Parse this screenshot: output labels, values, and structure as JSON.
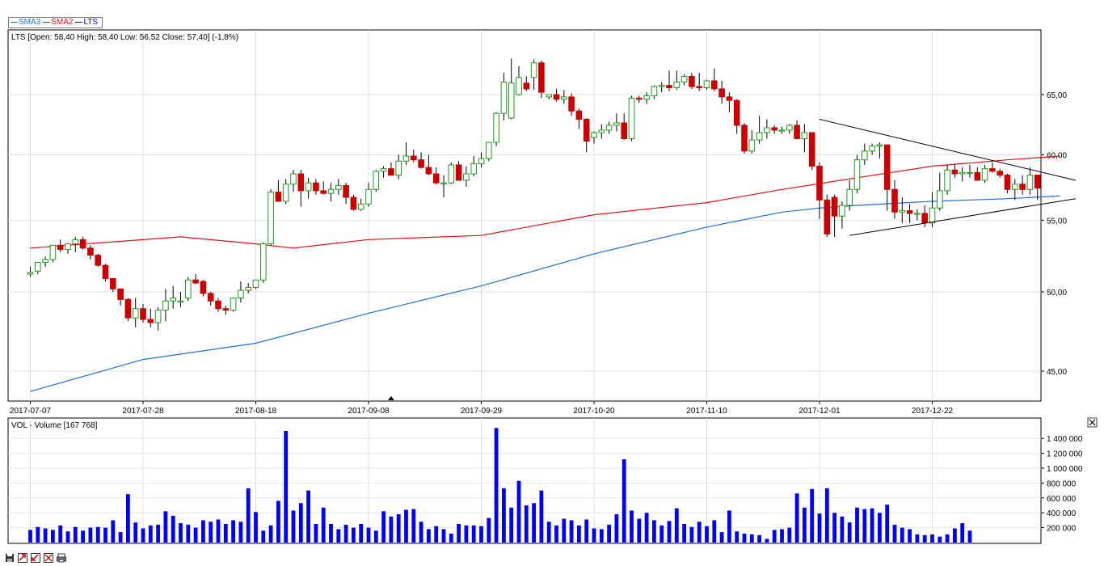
{
  "legend": {
    "items": [
      {
        "label": "SMA3",
        "color": "#1f6fd6"
      },
      {
        "label": "SMA2",
        "color": "#e01010"
      },
      {
        "label": "LTS",
        "color": "#0000ff"
      }
    ]
  },
  "price_panel": {
    "header": "LTS [Open: 58,40  High: 58,40  Low: 56,52  Close: 57,40] (-1,8%)"
  },
  "volume_panel": {
    "header": "VOL - Volume [167 768]",
    "close_icon": "close-icon"
  },
  "toolbar": {
    "icons": [
      "save-icon",
      "zoom-in-icon",
      "zoom-out-icon",
      "fit-icon",
      "print-icon"
    ]
  },
  "colors": {
    "up_candle": "#1a9e1a",
    "down_candle": "#cc0000",
    "sma3": "#1f6fd6",
    "sma2": "#e01010",
    "volume": "#0000ff",
    "trendline": "#000000"
  },
  "chart_data": [
    {
      "type": "candlestick",
      "title": "LTS [Open: 58,40  High: 58,40  Low: 56,52  Close: 57,40] (-1,8%)",
      "x_tick_labels": [
        "2017-07-07",
        "2017-07-28",
        "2017-08-18",
        "2017-09-08",
        "2017-09-29",
        "2017-10-20",
        "2017-11-10",
        "2017-12-01",
        "2017-12-22"
      ],
      "y_tick_labels": [
        "45,00",
        "50,00",
        "55,00",
        "60,00",
        "65,00"
      ],
      "ylim": [
        43.5,
        69.5
      ],
      "y_scale": "log",
      "grid": true,
      "candles": {
        "open": [
          51.2,
          51.4,
          52.0,
          52.2,
          53.2,
          52.9,
          53.3,
          53.6,
          53.0,
          52.5,
          51.8,
          50.9,
          50.2,
          49.5,
          48.3,
          48.9,
          48.2,
          48.0,
          48.8,
          49.4,
          49.4,
          49.6,
          50.8,
          50.7,
          49.9,
          49.4,
          48.9,
          48.8,
          49.6,
          50.1,
          50.3,
          50.8,
          53.3,
          57.1,
          56.4,
          57.7,
          58.5,
          57.2,
          57.8,
          57.2,
          57.0,
          57.3,
          57.6,
          56.7,
          55.8,
          56.2,
          57.3,
          58.7,
          58.9,
          58.4,
          59.5,
          59.9,
          59.6,
          59.0,
          58.5,
          57.8,
          57.8,
          59.2,
          58.0,
          58.5,
          59.3,
          59.7,
          61.0,
          63.4,
          63.0,
          65.0,
          66.0,
          66.5,
          67.8,
          64.8,
          65.0,
          64.6,
          64.8,
          63.6,
          62.9,
          61.4,
          61.8,
          62.0,
          62.4,
          62.6,
          61.3,
          64.7,
          64.6,
          64.9,
          65.7,
          65.8,
          65.6,
          66.1,
          66.6,
          65.7,
          65.6,
          66.2,
          65.5,
          64.8,
          64.5,
          62.4,
          60.3,
          61.2,
          61.8,
          62.2,
          62.0,
          62.0,
          62.4,
          61.3,
          61.8,
          59.1,
          56.5,
          56.7,
          55.3,
          56.1,
          57.3,
          59.6,
          60.3,
          60.7,
          60.8,
          57.3,
          55.6,
          55.7,
          55.5,
          55.5,
          54.8,
          55.9,
          57.2,
          58.8,
          58.5,
          58.6,
          58.6,
          58.0,
          58.9,
          58.7,
          58.4,
          57.3,
          57.7,
          57.3,
          58.4
        ],
        "high": [
          51.7,
          52.0,
          52.4,
          53.2,
          53.6,
          53.3,
          53.8,
          53.8,
          53.2,
          52.6,
          51.9,
          50.9,
          50.2,
          49.6,
          49.6,
          49.2,
          48.9,
          49.0,
          50.2,
          50.4,
          50.0,
          51.0,
          51.2,
          50.8,
          50.0,
          49.6,
          49.1,
          49.5,
          50.7,
          50.6,
          50.5,
          53.4,
          57.3,
          58.0,
          58.1,
          58.8,
          58.8,
          58.2,
          58.1,
          57.9,
          57.8,
          58.1,
          57.8,
          56.9,
          56.6,
          57.8,
          58.8,
          59.1,
          59.4,
          60.0,
          61.0,
          60.4,
          60.2,
          60.0,
          59.0,
          58.4,
          59.4,
          59.5,
          59.1,
          59.9,
          60.2,
          60.7,
          63.5,
          66.9,
          68.2,
          67.5,
          66.6,
          68.1,
          68.0,
          65.0,
          65.5,
          65.4,
          65.1,
          63.8,
          63.0,
          61.9,
          62.5,
          62.7,
          63.4,
          63.4,
          64.9,
          64.9,
          65.2,
          65.8,
          66.1,
          67.1,
          67.1,
          66.8,
          66.9,
          66.9,
          66.3,
          67.3,
          66.2,
          65.2,
          64.6,
          62.6,
          62.0,
          63.2,
          62.9,
          62.4,
          62.3,
          62.5,
          62.8,
          62.5,
          61.8,
          59.4,
          56.9,
          56.9,
          56.4,
          58.0,
          60.0,
          60.9,
          60.9,
          61.0,
          60.8,
          58.0,
          56.7,
          56.2,
          55.8,
          56.1,
          57.1,
          58.6,
          59.2,
          59.3,
          59.0,
          59.2,
          59.0,
          59.2,
          59.4,
          58.9,
          58.5,
          58.1,
          58.4,
          59.0,
          58.4
        ],
        "low": [
          51.0,
          51.2,
          51.7,
          52.0,
          52.7,
          52.6,
          52.7,
          52.9,
          52.2,
          51.7,
          50.7,
          50.0,
          49.1,
          48.1,
          47.7,
          48.0,
          47.7,
          47.5,
          48.1,
          48.9,
          49.0,
          49.4,
          50.5,
          49.7,
          49.1,
          48.7,
          48.5,
          48.7,
          49.3,
          49.9,
          50.2,
          50.6,
          53.2,
          56.5,
          56.2,
          57.1,
          56.0,
          56.6,
          56.9,
          56.9,
          56.4,
          56.9,
          56.2,
          55.7,
          55.7,
          56.0,
          57.1,
          58.2,
          58.4,
          58.1,
          59.2,
          59.4,
          58.9,
          58.4,
          57.7,
          56.7,
          57.7,
          58.1,
          57.5,
          58.3,
          59.0,
          59.5,
          60.7,
          62.8,
          62.9,
          64.9,
          65.3,
          65.4,
          64.7,
          64.6,
          64.4,
          64.2,
          63.2,
          62.1,
          60.2,
          60.9,
          61.3,
          61.7,
          61.9,
          61.2,
          61.1,
          64.3,
          64.2,
          64.6,
          65.2,
          65.3,
          65.4,
          65.8,
          65.5,
          65.3,
          65.4,
          65.3,
          64.2,
          63.5,
          61.7,
          60.1,
          60.1,
          60.9,
          61.3,
          61.7,
          61.7,
          61.7,
          61.7,
          60.2,
          58.8,
          55.1,
          53.8,
          53.8,
          54.4,
          55.7,
          57.0,
          59.2,
          60.0,
          59.7,
          55.7,
          55.1,
          54.8,
          54.8,
          55.0,
          54.5,
          54.5,
          55.7,
          56.9,
          58.2,
          57.9,
          58.2,
          58.1,
          57.8,
          58.6,
          58.2,
          57.0,
          56.5,
          56.9,
          56.9,
          56.5
        ],
        "close": [
          51.3,
          52.0,
          52.2,
          53.2,
          52.9,
          53.3,
          53.6,
          53.0,
          52.5,
          51.8,
          50.9,
          50.2,
          49.5,
          48.3,
          48.9,
          48.2,
          48.0,
          48.8,
          49.4,
          49.6,
          49.4,
          50.8,
          50.6,
          49.9,
          49.4,
          48.9,
          48.8,
          49.6,
          50.1,
          50.3,
          50.8,
          53.3,
          57.1,
          56.4,
          57.7,
          58.5,
          57.2,
          57.8,
          57.2,
          57.0,
          57.3,
          57.6,
          56.7,
          55.8,
          56.2,
          57.3,
          58.7,
          58.9,
          58.4,
          59.5,
          59.9,
          59.6,
          59.0,
          58.5,
          57.8,
          57.8,
          59.2,
          58.0,
          58.5,
          59.3,
          59.7,
          61.0,
          63.4,
          66.1,
          66.0,
          66.5,
          65.5,
          67.8,
          65.2,
          65.0,
          64.6,
          64.8,
          63.6,
          62.9,
          61.1,
          61.8,
          62.0,
          62.4,
          62.6,
          61.3,
          64.7,
          64.6,
          64.9,
          65.7,
          65.8,
          65.6,
          66.1,
          66.6,
          65.7,
          65.6,
          66.2,
          65.5,
          64.8,
          64.5,
          62.4,
          60.3,
          61.2,
          61.8,
          62.2,
          62.0,
          62.0,
          62.4,
          61.3,
          61.8,
          59.1,
          56.5,
          54.0,
          55.3,
          56.1,
          57.3,
          59.6,
          60.3,
          60.7,
          60.8,
          57.3,
          55.6,
          55.7,
          55.5,
          55.5,
          54.8,
          55.9,
          57.2,
          58.8,
          58.5,
          58.6,
          58.6,
          58.0,
          58.9,
          58.7,
          58.4,
          57.3,
          57.7,
          57.3,
          58.4,
          57.4
        ]
      },
      "series": [
        {
          "name": "SMA2",
          "x_index": [
            0,
            20,
            30,
            35,
            45,
            60,
            75,
            90,
            100,
            110,
            120,
            130,
            137
          ],
          "values": [
            53.0,
            53.8,
            53.3,
            53.0,
            53.6,
            53.9,
            55.4,
            56.3,
            57.3,
            58.2,
            59.1,
            59.6,
            59.9
          ]
        },
        {
          "name": "SMA3",
          "x_index": [
            0,
            15,
            30,
            45,
            60,
            75,
            90,
            100,
            105,
            110,
            120,
            130,
            137
          ],
          "values": [
            43.8,
            45.7,
            46.7,
            48.6,
            50.4,
            52.6,
            54.5,
            55.6,
            55.9,
            56.1,
            56.4,
            56.6,
            56.8
          ]
        }
      ],
      "trendlines": [
        {
          "from": {
            "x_index": 105,
            "y": 62.9
          },
          "to": {
            "x_index": 138,
            "y": 58.0
          }
        },
        {
          "from": {
            "x_index": 109,
            "y": 53.9
          },
          "to": {
            "x_index": 138,
            "y": 56.6
          }
        }
      ]
    },
    {
      "type": "bar",
      "title": "VOL - Volume [167 768]",
      "y_tick_labels": [
        "200 000",
        "400 000",
        "600 000",
        "800 000",
        "1 000 000",
        "1 200 000",
        "1 400 000"
      ],
      "ylim": [
        0,
        1650000
      ],
      "values": [
        170000,
        210000,
        190000,
        170000,
        230000,
        150000,
        210000,
        160000,
        200000,
        210000,
        200000,
        300000,
        140000,
        650000,
        270000,
        190000,
        230000,
        240000,
        420000,
        360000,
        260000,
        240000,
        200000,
        300000,
        280000,
        310000,
        250000,
        300000,
        280000,
        730000,
        410000,
        160000,
        230000,
        560000,
        1500000,
        430000,
        530000,
        700000,
        250000,
        470000,
        250000,
        180000,
        240000,
        200000,
        250000,
        200000,
        160000,
        420000,
        350000,
        380000,
        440000,
        450000,
        280000,
        180000,
        220000,
        180000,
        120000,
        250000,
        230000,
        230000,
        220000,
        330000,
        1540000,
        730000,
        470000,
        830000,
        500000,
        530000,
        700000,
        280000,
        230000,
        320000,
        300000,
        230000,
        310000,
        190000,
        180000,
        240000,
        380000,
        1120000,
        430000,
        320000,
        400000,
        300000,
        230000,
        290000,
        460000,
        250000,
        210000,
        280000,
        220000,
        300000,
        140000,
        430000,
        150000,
        120000,
        110000,
        100000,
        50000,
        170000,
        180000,
        200000,
        660000,
        470000,
        720000,
        390000,
        730000,
        400000,
        350000,
        270000,
        470000,
        450000,
        460000,
        400000,
        510000,
        240000,
        200000,
        180000,
        110000,
        100000,
        110000,
        80000,
        110000,
        190000,
        260000,
        160000
      ]
    }
  ]
}
